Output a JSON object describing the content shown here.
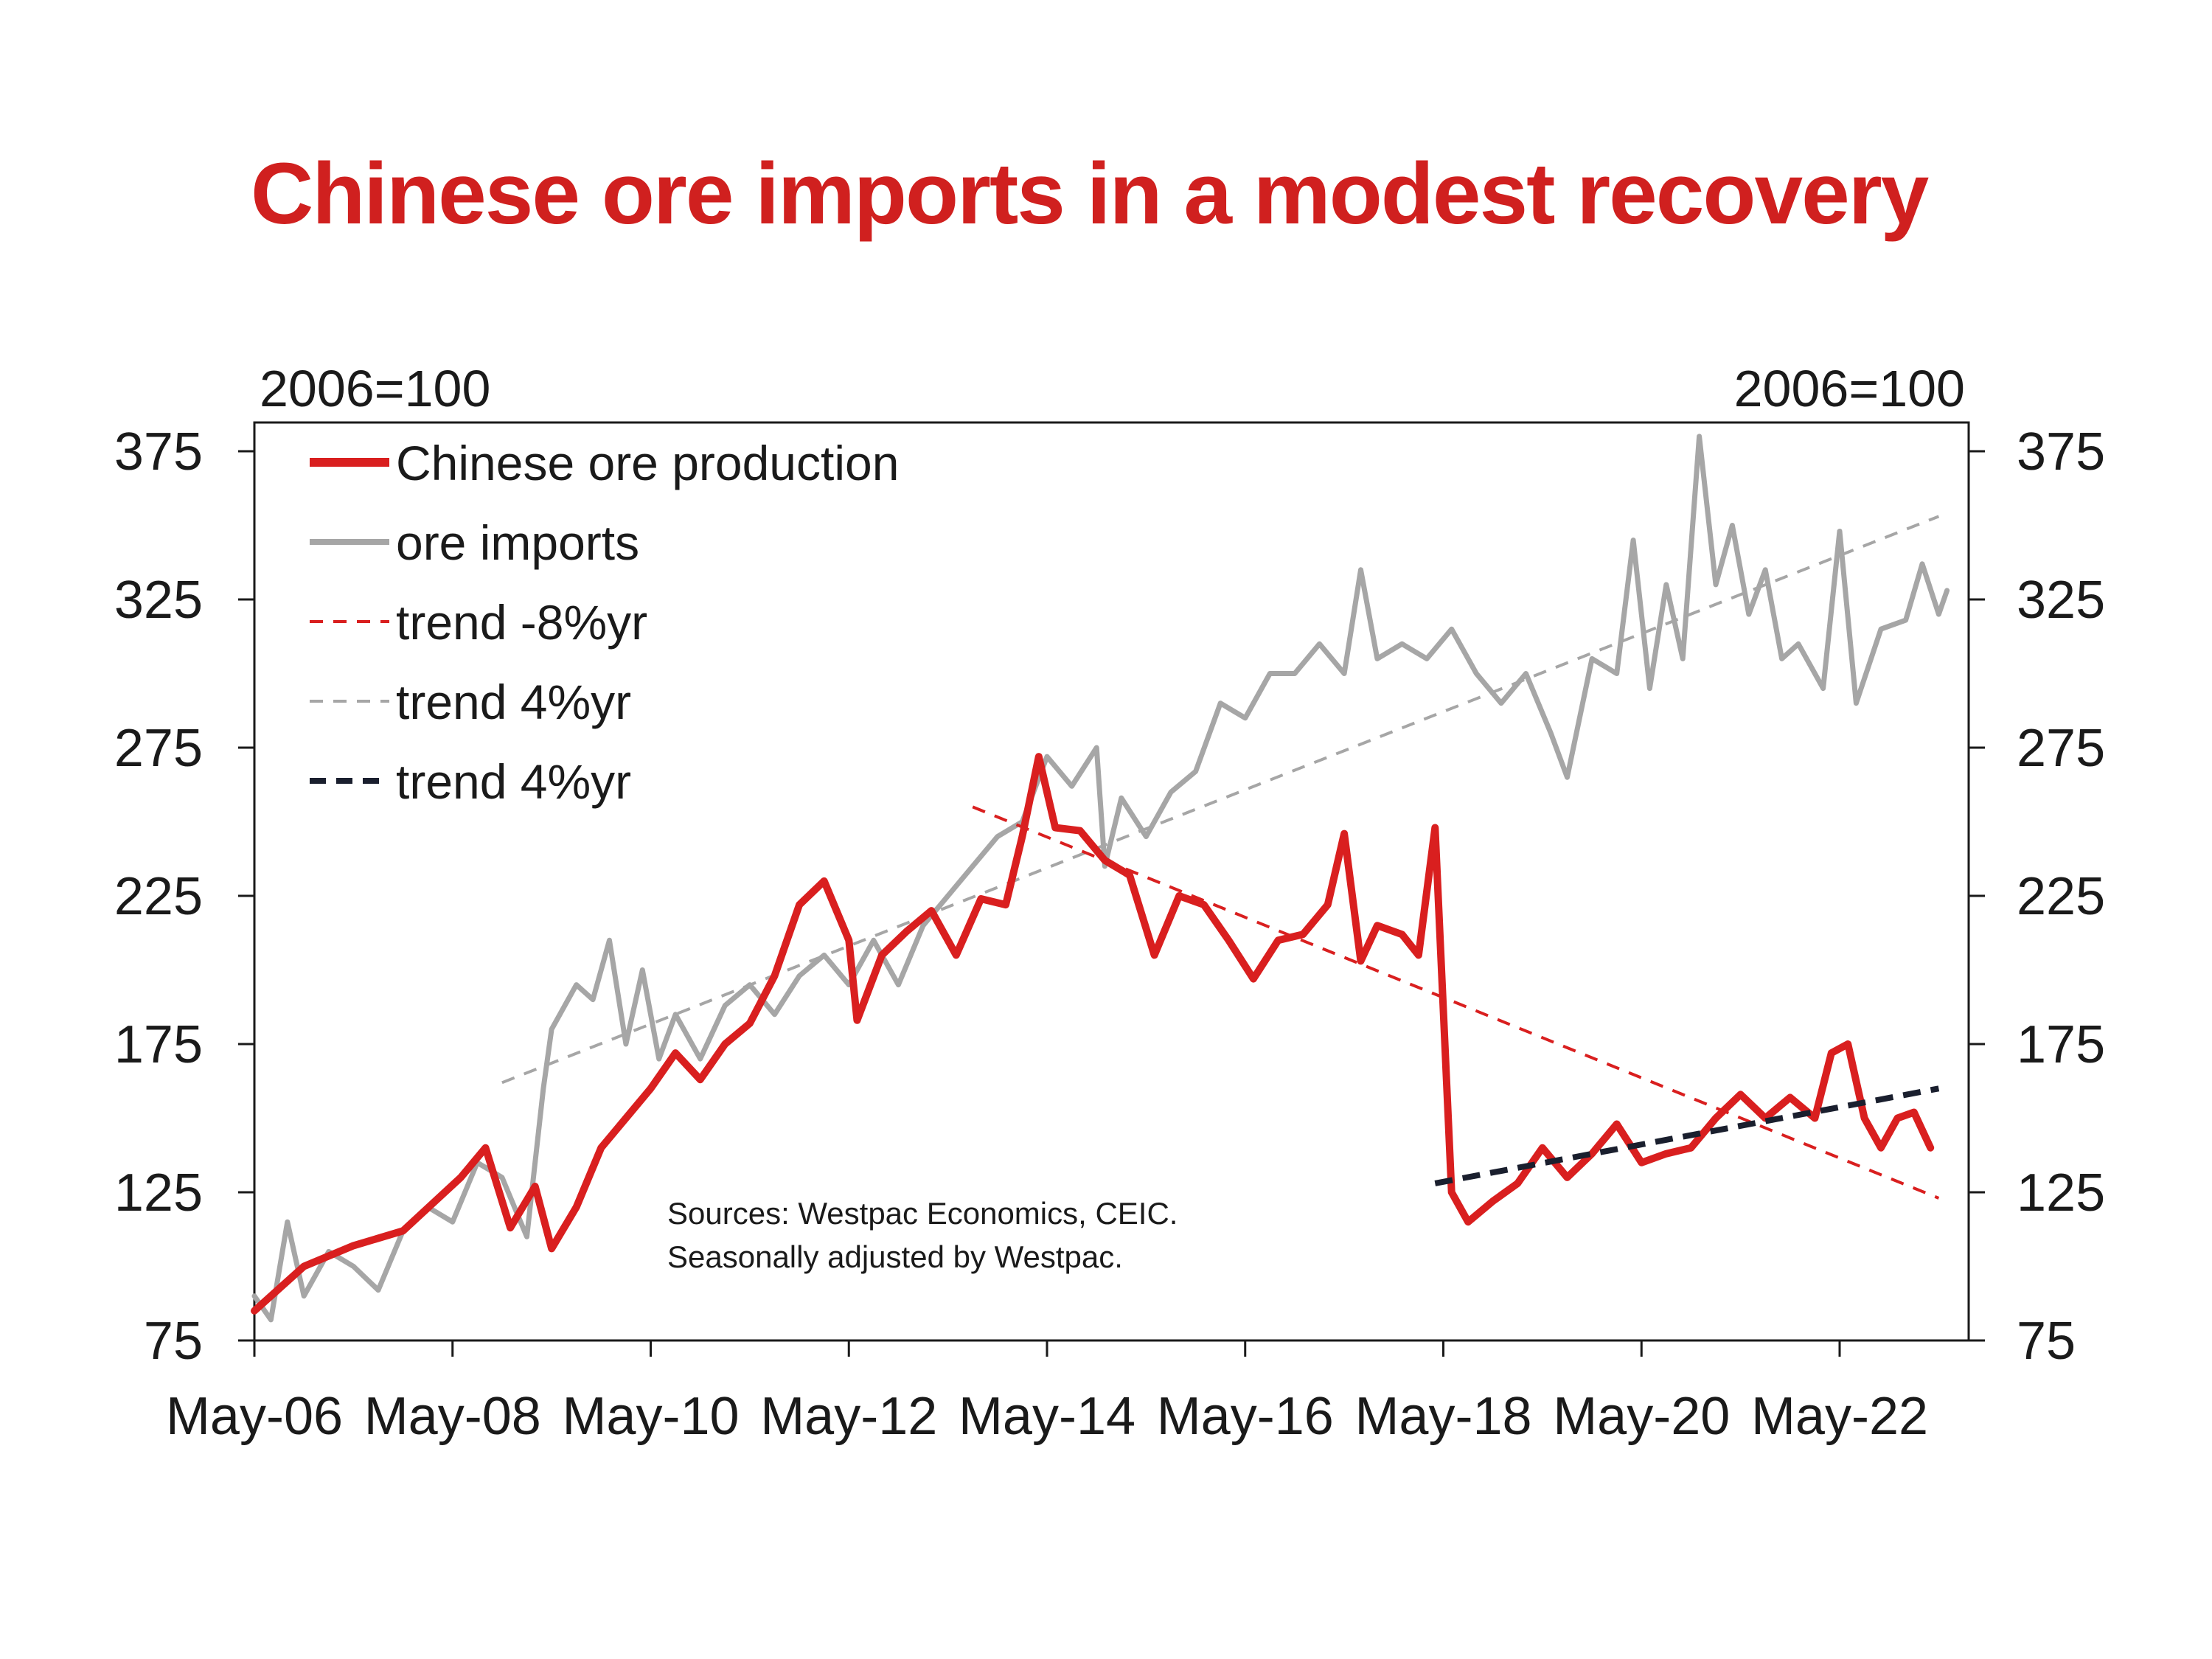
{
  "title": "Chinese ore imports in a modest recovery",
  "source_note": [
    "Sources: Westpac Economics, CEIC.",
    "Seasonally adjusted by Westpac."
  ],
  "chart_data": {
    "type": "line",
    "y_unit_left": "2006=100",
    "y_unit_right": "2006=100",
    "ylim": [
      75,
      375
    ],
    "y_ticks": [
      75,
      125,
      175,
      225,
      275,
      325,
      375
    ],
    "x_range": [
      "May-06",
      "Mar-23"
    ],
    "x_ticks": [
      "May-06",
      "May-08",
      "May-10",
      "May-12",
      "May-14",
      "May-16",
      "May-18",
      "May-20",
      "May-22"
    ],
    "grid": false,
    "legend_position": "top-left",
    "series": [
      {
        "name": "Chinese ore production",
        "color": "#d91f1f",
        "style": "solid",
        "points": [
          [
            "May-06",
            85
          ],
          [
            "Nov-06",
            100
          ],
          [
            "May-07",
            107
          ],
          [
            "Nov-07",
            112
          ],
          [
            "Jun-08",
            130
          ],
          [
            "Sep-08",
            140
          ],
          [
            "Dec-08",
            113
          ],
          [
            "Mar-09",
            127
          ],
          [
            "May-09",
            106
          ],
          [
            "Aug-09",
            120
          ],
          [
            "Nov-09",
            140
          ],
          [
            "Feb-10",
            150
          ],
          [
            "May-10",
            160
          ],
          [
            "Aug-10",
            172
          ],
          [
            "Nov-10",
            163
          ],
          [
            "Feb-11",
            175
          ],
          [
            "May-11",
            182
          ],
          [
            "Aug-11",
            198
          ],
          [
            "Nov-11",
            222
          ],
          [
            "Feb-12",
            230
          ],
          [
            "May-12",
            210
          ],
          [
            "Jun-12",
            183
          ],
          [
            "Sep-12",
            205
          ],
          [
            "Dec-12",
            213
          ],
          [
            "Mar-13",
            220
          ],
          [
            "Jun-13",
            205
          ],
          [
            "Sep-13",
            224
          ],
          [
            "Dec-13",
            222
          ],
          [
            "Feb-14",
            245
          ],
          [
            "Apr-14",
            272
          ],
          [
            "Jun-14",
            248
          ],
          [
            "Sep-14",
            247
          ],
          [
            "Dec-14",
            237
          ],
          [
            "Mar-15",
            232
          ],
          [
            "Jun-15",
            205
          ],
          [
            "Sep-15",
            225
          ],
          [
            "Dec-15",
            222
          ],
          [
            "Mar-16",
            210
          ],
          [
            "Jun-16",
            197
          ],
          [
            "Sep-16",
            210
          ],
          [
            "Dec-16",
            212
          ],
          [
            "Mar-17",
            222
          ],
          [
            "May-17",
            246
          ],
          [
            "Jul-17",
            203
          ],
          [
            "Sep-17",
            215
          ],
          [
            "Dec-17",
            212
          ],
          [
            "Feb-18",
            205
          ],
          [
            "Apr-18",
            248
          ],
          [
            "Jun-18",
            125
          ],
          [
            "Aug-18",
            115
          ],
          [
            "Nov-18",
            122
          ],
          [
            "Feb-19",
            128
          ],
          [
            "May-19",
            140
          ],
          [
            "Aug-19",
            130
          ],
          [
            "Nov-19",
            138
          ],
          [
            "Feb-20",
            148
          ],
          [
            "May-20",
            135
          ],
          [
            "Aug-20",
            138
          ],
          [
            "Nov-20",
            140
          ],
          [
            "Feb-21",
            150
          ],
          [
            "May-21",
            158
          ],
          [
            "Aug-21",
            150
          ],
          [
            "Nov-21",
            157
          ],
          [
            "Feb-22",
            150
          ],
          [
            "Apr-22",
            172
          ],
          [
            "Jun-22",
            175
          ],
          [
            "Aug-22",
            150
          ],
          [
            "Oct-22",
            140
          ],
          [
            "Dec-22",
            150
          ],
          [
            "Feb-23",
            152
          ],
          [
            "Apr-23",
            140
          ]
        ]
      },
      {
        "name": "ore imports",
        "color": "#a6a6a6",
        "style": "solid",
        "points": [
          [
            "May-06",
            90
          ],
          [
            "Jul-06",
            82
          ],
          [
            "Sep-06",
            115
          ],
          [
            "Nov-06",
            90
          ],
          [
            "Feb-07",
            105
          ],
          [
            "May-07",
            100
          ],
          [
            "Aug-07",
            92
          ],
          [
            "Nov-07",
            112
          ],
          [
            "Feb-08",
            120
          ],
          [
            "May-08",
            115
          ],
          [
            "Aug-08",
            135
          ],
          [
            "Nov-08",
            130
          ],
          [
            "Feb-09",
            110
          ],
          [
            "Apr-09",
            160
          ],
          [
            "May-09",
            180
          ],
          [
            "Aug-09",
            195
          ],
          [
            "Oct-09",
            190
          ],
          [
            "Dec-09",
            210
          ],
          [
            "Feb-10",
            175
          ],
          [
            "Apr-10",
            200
          ],
          [
            "Jun-10",
            170
          ],
          [
            "Aug-10",
            185
          ],
          [
            "Nov-10",
            170
          ],
          [
            "Feb-11",
            188
          ],
          [
            "May-11",
            195
          ],
          [
            "Aug-11",
            185
          ],
          [
            "Nov-11",
            198
          ],
          [
            "Feb-12",
            205
          ],
          [
            "May-12",
            195
          ],
          [
            "Aug-12",
            210
          ],
          [
            "Nov-12",
            195
          ],
          [
            "Feb-13",
            215
          ],
          [
            "May-13",
            225
          ],
          [
            "Aug-13",
            235
          ],
          [
            "Nov-13",
            245
          ],
          [
            "Feb-14",
            250
          ],
          [
            "May-14",
            272
          ],
          [
            "Aug-14",
            262
          ],
          [
            "Nov-14",
            275
          ],
          [
            "Dec-14",
            235
          ],
          [
            "Feb-15",
            258
          ],
          [
            "May-15",
            245
          ],
          [
            "Aug-15",
            260
          ],
          [
            "Nov-15",
            267
          ],
          [
            "Feb-16",
            290
          ],
          [
            "May-16",
            285
          ],
          [
            "Aug-16",
            300
          ],
          [
            "Nov-16",
            300
          ],
          [
            "Feb-17",
            310
          ],
          [
            "May-17",
            300
          ],
          [
            "Jul-17",
            335
          ],
          [
            "Sep-17",
            305
          ],
          [
            "Dec-17",
            310
          ],
          [
            "Mar-18",
            305
          ],
          [
            "Jun-18",
            315
          ],
          [
            "Sep-18",
            300
          ],
          [
            "Dec-18",
            290
          ],
          [
            "Mar-19",
            300
          ],
          [
            "Jun-19",
            280
          ],
          [
            "Aug-19",
            265
          ],
          [
            "Nov-19",
            305
          ],
          [
            "Feb-20",
            300
          ],
          [
            "Apr-20",
            345
          ],
          [
            "Jun-20",
            295
          ],
          [
            "Aug-20",
            330
          ],
          [
            "Oct-20",
            305
          ],
          [
            "Dec-20",
            380
          ],
          [
            "Feb-21",
            330
          ],
          [
            "Apr-21",
            350
          ],
          [
            "Jun-21",
            320
          ],
          [
            "Aug-21",
            335
          ],
          [
            "Oct-21",
            305
          ],
          [
            "Dec-21",
            310
          ],
          [
            "Mar-22",
            295
          ],
          [
            "May-22",
            348
          ],
          [
            "Jul-22",
            290
          ],
          [
            "Oct-22",
            315
          ],
          [
            "Jan-23",
            318
          ],
          [
            "Mar-23",
            337
          ],
          [
            "May-23",
            320
          ],
          [
            "Jun-23",
            328
          ]
        ]
      },
      {
        "name": "trend -8%yr",
        "color": "#d91f1f",
        "style": "dashed",
        "points": [
          [
            "Aug-13",
            255
          ],
          [
            "May-23",
            123
          ]
        ]
      },
      {
        "name": "trend 4%yr",
        "color": "#a6a6a6",
        "style": "dashed",
        "points": [
          [
            "Nov-08",
            162
          ],
          [
            "May-23",
            353
          ]
        ]
      },
      {
        "name": "trend 4%yr",
        "color": "#1a1f2e",
        "style": "dashed",
        "points": [
          [
            "Apr-18",
            128
          ],
          [
            "May-23",
            160
          ]
        ]
      }
    ]
  }
}
